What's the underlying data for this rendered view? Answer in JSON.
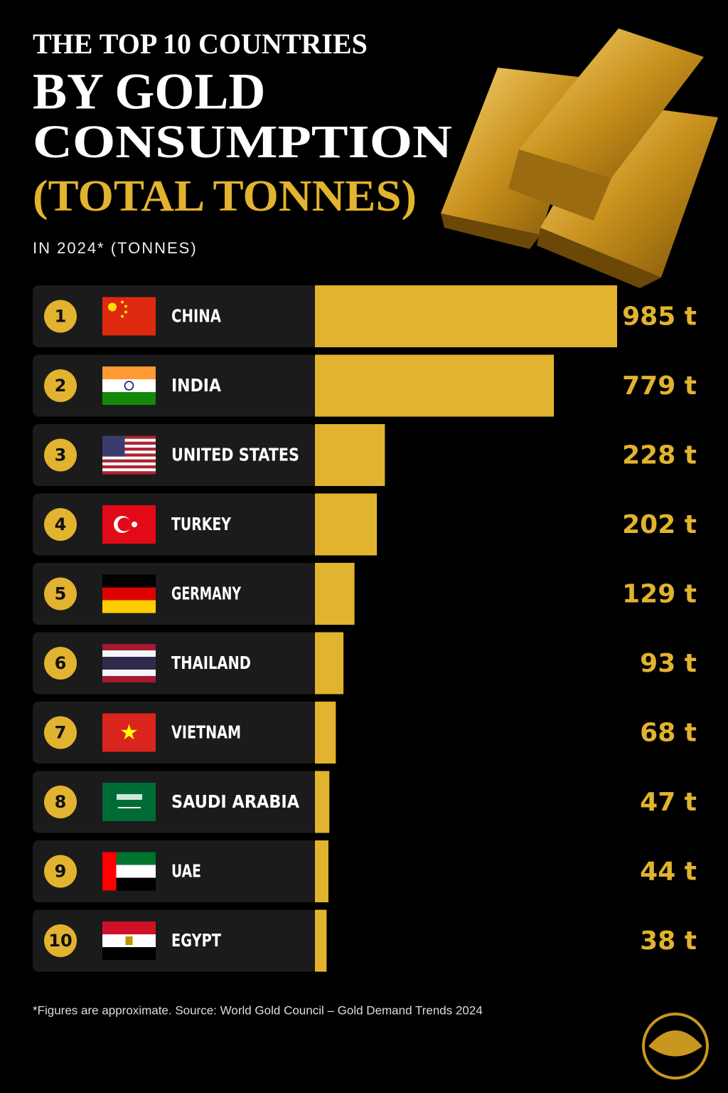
{
  "chart_data": {
    "type": "bar",
    "kicker": "THE TOP 10 COUNTRIES",
    "title": [
      "BY GOLD",
      "CONSUMPTION"
    ],
    "title_highlight": "(TOTAL TONNES)",
    "subtitle": "IN 2024* (TONNES)",
    "ranks": [
      "1",
      "2",
      "3",
      "4",
      "5",
      "6",
      "7",
      "8",
      "9",
      "10"
    ],
    "categories": [
      "CHINA",
      "INDIA",
      "UNITED STATES",
      "TURKEY",
      "GERMANY",
      "THAILAND",
      "VIETNAM",
      "SAUDI ARABIA",
      "UAE",
      "EGYPT"
    ],
    "values": [
      985,
      779,
      228,
      202,
      129,
      93,
      68,
      47,
      44,
      38
    ],
    "value_labels": [
      "985 t",
      "779 t",
      "228 t",
      "202 t",
      "129 t",
      "93 t",
      "68 t",
      "47 t",
      "44 t",
      "38 t"
    ],
    "color": "#e2b32e",
    "footnote": "*Figures are approximate. Source: World Gold Council – Gold Demand Trends 2024"
  }
}
